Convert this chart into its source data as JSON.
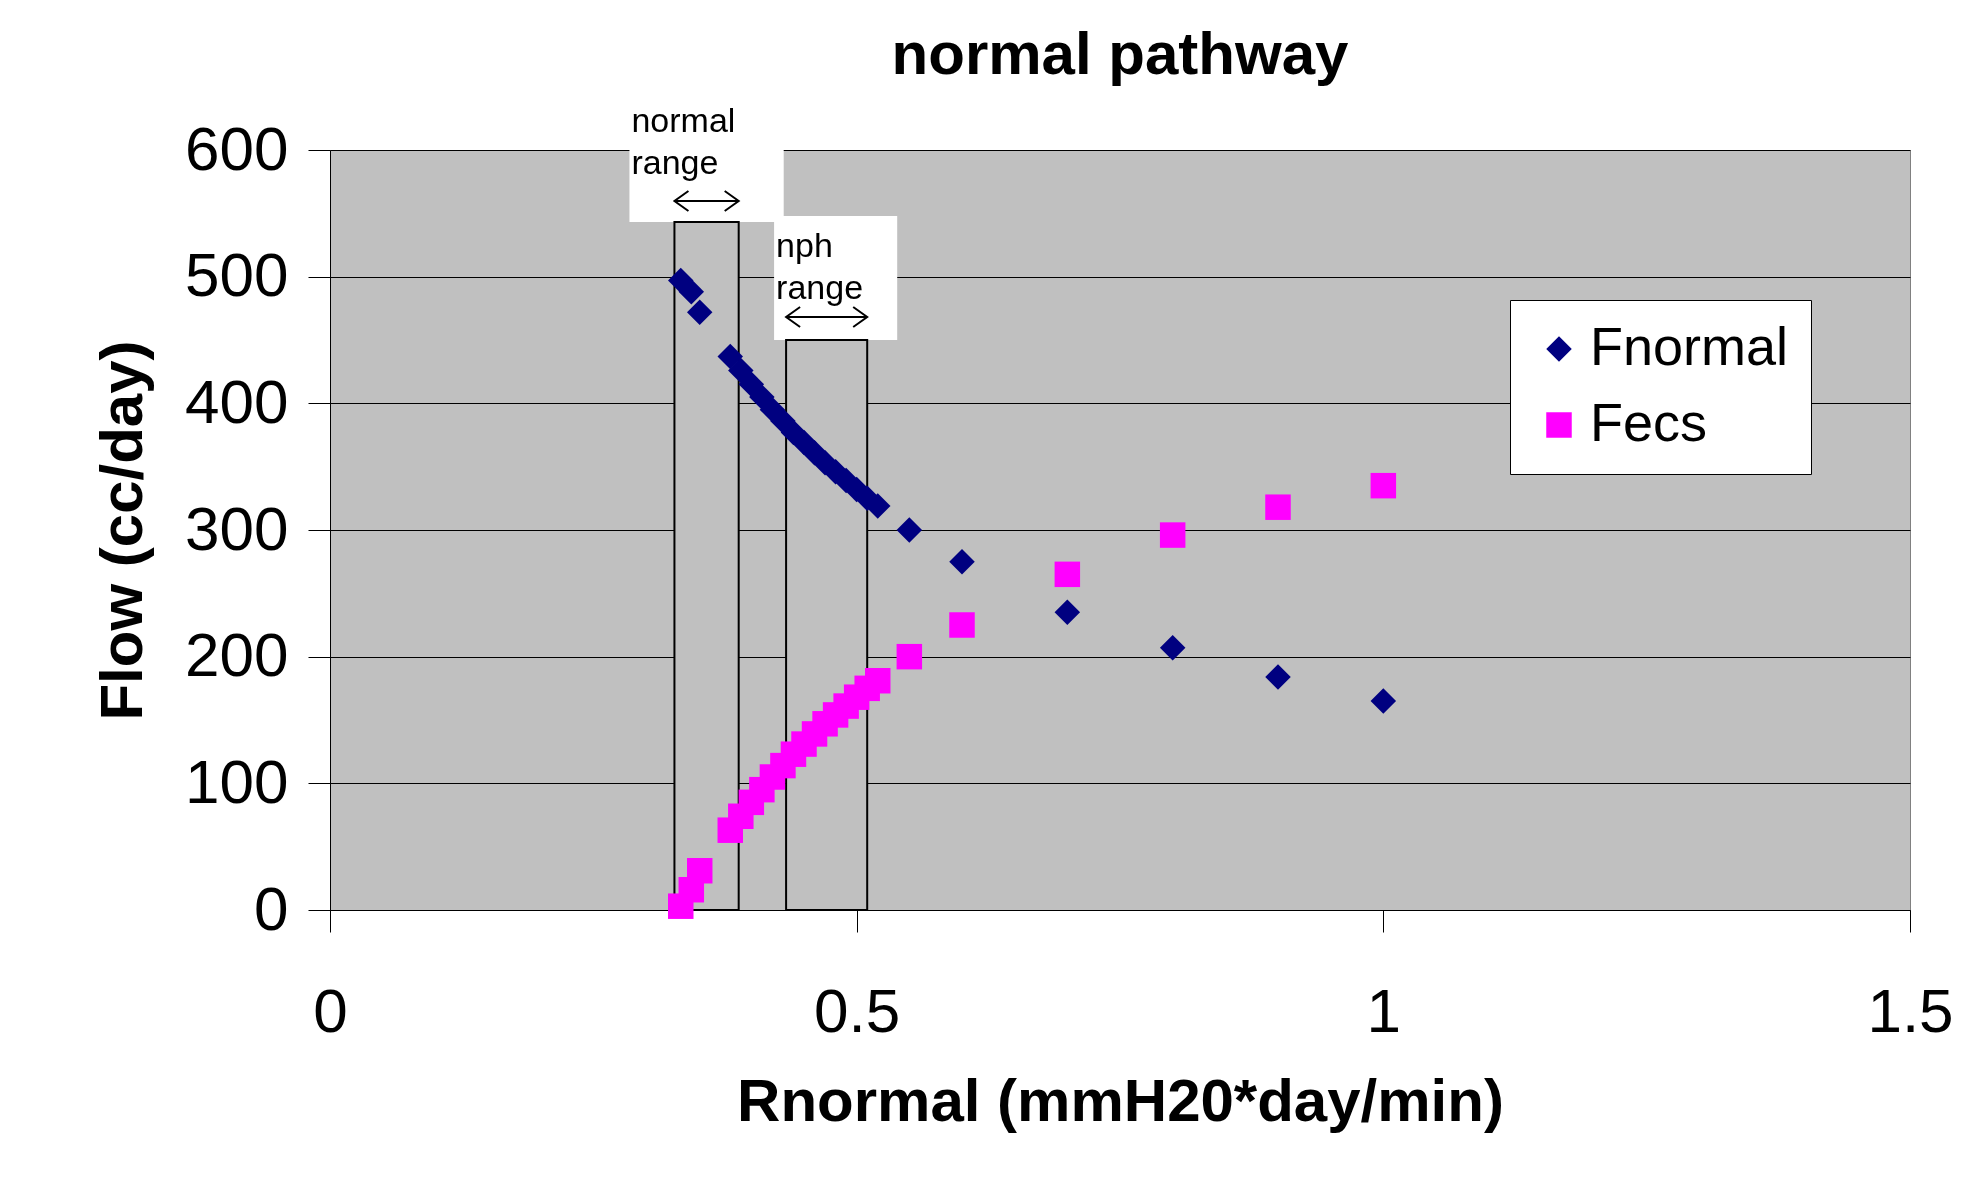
{
  "chart_data": {
    "type": "scatter",
    "title": "normal pathway",
    "xlabel": "Rnormal (mmH20*day/min)",
    "ylabel": "Flow (cc/day)",
    "x": [
      0.333,
      0.343,
      0.351,
      0.38,
      0.39,
      0.4,
      0.41,
      0.42,
      0.43,
      0.44,
      0.45,
      0.46,
      0.47,
      0.48,
      0.49,
      0.5,
      0.51,
      0.52,
      0.55,
      0.6,
      0.7,
      0.8,
      0.9,
      1.0
    ],
    "series": [
      {
        "name": "Fnormal",
        "color": "#000080",
        "marker": "diamond",
        "values": [
          497,
          488,
          472,
          437,
          426,
          415,
          405,
          395,
          386,
          377,
          369,
          361,
          353,
          346,
          339,
          332,
          325,
          319,
          300,
          275,
          235,
          207,
          184,
          165
        ]
      },
      {
        "name": "Fecs",
        "color": "#ff00ff",
        "marker": "square",
        "values": [
          3,
          16,
          31,
          63,
          74,
          85,
          95,
          105,
          114,
          123,
          131,
          139,
          147,
          154,
          161,
          168,
          175,
          181,
          200,
          225,
          265,
          296,
          318,
          335
        ]
      }
    ],
    "xlim": [
      0,
      1.5
    ],
    "xticks": [
      0,
      0.5,
      1,
      1.5
    ],
    "ylim": [
      0,
      600
    ],
    "yticks": [
      0,
      100,
      200,
      300,
      400,
      500,
      600
    ],
    "grid": "y",
    "legend": "top right",
    "bands": [
      {
        "axis": "x",
        "from": 0.327,
        "to": 0.388,
        "label": "normal range",
        "color": "#c0c0c0"
      },
      {
        "axis": "x",
        "from": 0.433,
        "to": 0.51,
        "label": "nph range",
        "color": "#c0c0c0"
      }
    ]
  }
}
